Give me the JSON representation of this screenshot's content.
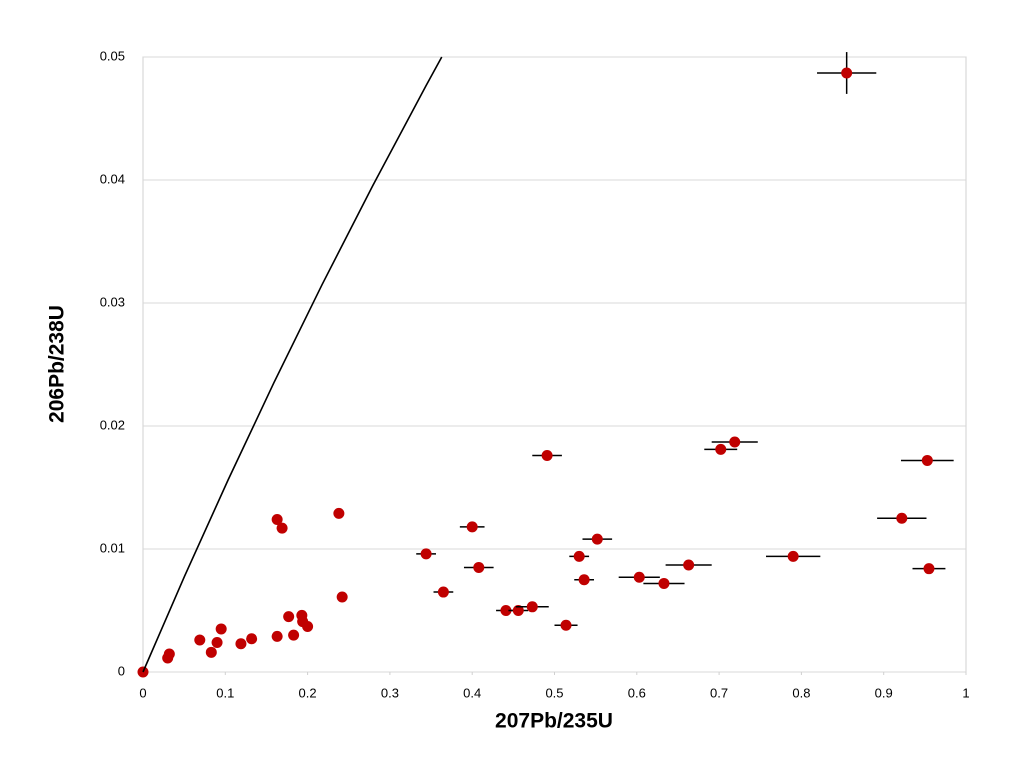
{
  "chart_data": {
    "type": "scatter",
    "x_label": "207Pb/235U",
    "y_label": "206Pb/238U",
    "xlim": [
      0,
      1
    ],
    "ylim": [
      0,
      0.05
    ],
    "xticks": [
      0,
      0.1,
      0.2,
      0.3,
      0.4,
      0.5,
      0.6,
      0.7,
      0.8,
      0.9,
      1
    ],
    "yticks": [
      0,
      0.01,
      0.02,
      0.03,
      0.04,
      0.05
    ],
    "grid": true,
    "series": [
      {
        "color": "#c00000",
        "x": [
          0,
          0.03,
          0.032,
          0.069,
          0.083,
          0.09,
          0.095,
          0.119,
          0.132,
          0.163,
          0.163,
          0.169,
          0.177,
          0.183,
          0.193,
          0.194,
          0.2,
          0.238,
          0.242,
          0.344,
          0.365,
          0.4,
          0.408,
          0.441,
          0.456,
          0.473,
          0.491,
          0.514,
          0.53,
          0.536,
          0.552,
          0.603,
          0.633,
          0.663,
          0.702,
          0.719,
          0.79,
          0.855,
          0.922,
          0.953,
          0.955
        ],
        "values": [
          0,
          0.00114,
          0.00146,
          0.0026,
          0.0016,
          0.0024,
          0.0035,
          0.0023,
          0.0027,
          0.0029,
          0.0124,
          0.0117,
          0.0045,
          0.003,
          0.0046,
          0.0041,
          0.0037,
          0.0129,
          0.0061,
          0.0096,
          0.0065,
          0.0118,
          0.0085,
          0.005,
          0.005,
          0.0053,
          0.0176,
          0.0038,
          0.0094,
          0.0075,
          0.0108,
          0.0077,
          0.0072,
          0.0087,
          0.0181,
          0.0187,
          0.0094,
          0.0487,
          0.0125,
          0.0172,
          0.0084
        ],
        "xerr": [
          0,
          0,
          0,
          0,
          0,
          0,
          0,
          0,
          0,
          0,
          0,
          0,
          0,
          0,
          0,
          0,
          0,
          0.006,
          0.005,
          0.012,
          0.012,
          0.015,
          0.018,
          0.012,
          0.012,
          0.02,
          0.018,
          0.014,
          0.012,
          0.012,
          0.018,
          0.025,
          0.025,
          0.028,
          0.02,
          0.028,
          0.033,
          0.036,
          0.03,
          0.032,
          0.02
        ],
        "yerr": [
          0,
          0,
          0,
          0,
          0,
          0,
          0,
          0,
          0,
          0,
          0,
          0,
          0,
          0,
          0,
          0,
          0,
          0.0002,
          0,
          0,
          0,
          0,
          0,
          0,
          0,
          0,
          0.0004,
          0,
          0,
          0,
          0,
          0,
          0,
          0,
          0,
          0.0004,
          0,
          0.0017,
          0,
          0.0004,
          0
        ]
      },
      {
        "type": "line",
        "color": "#000000",
        "x": [
          0,
          0.0505,
          0.1035,
          0.1592,
          0.2177,
          0.2792,
          0.3437,
          0.363
        ],
        "values": [
          0,
          0.00779,
          0.01563,
          0.02354,
          0.03151,
          0.03954,
          0.04764,
          0.05
        ]
      }
    ]
  }
}
